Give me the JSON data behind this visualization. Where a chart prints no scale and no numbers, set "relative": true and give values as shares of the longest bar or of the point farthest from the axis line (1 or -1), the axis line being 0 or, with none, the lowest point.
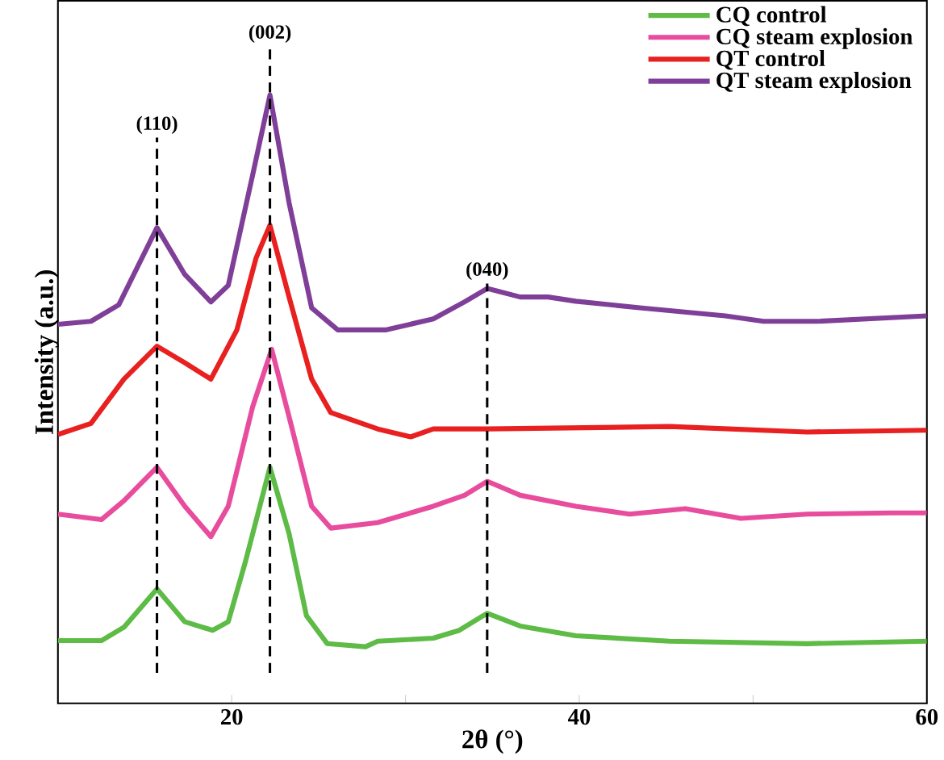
{
  "chart_data": {
    "type": "line",
    "xlabel": "2θ (°)",
    "ylabel": "Intensity (a.u.)",
    "relative": true,
    "xlim": [
      10,
      60
    ],
    "xticks": [
      20,
      {
        "value": 30,
        "label": null
      },
      40,
      {
        "value": 50,
        "label": null
      },
      60
    ],
    "legend": "top right",
    "line_style": "solid",
    "ref_lines": [
      {
        "axis": "x",
        "value": 15.7,
        "color": "#000000",
        "line_style": "dashed"
      },
      {
        "axis": "x",
        "value": 22.2,
        "color": "#000000",
        "line_style": "dashed"
      },
      {
        "axis": "x",
        "value": 34.7,
        "color": "#000000",
        "line_style": "dashed"
      }
    ],
    "annotations": [
      {
        "text": "(110)",
        "x": 15.7,
        "y": 0.93
      },
      {
        "text": "(002)",
        "x": 22.2,
        "y": 1.08
      },
      {
        "text": "(040)",
        "x": 34.7,
        "y": 0.69
      }
    ],
    "series": [
      {
        "name": "CQ control",
        "color": "#5dbb46",
        "x": [
          10,
          12.5,
          13.8,
          15.7,
          17.3,
          18.9,
          19.8,
          20.8,
          22.2,
          23.3,
          24.3,
          25.5,
          27.7,
          28.4,
          31.6,
          33.1,
          34.7,
          36.6,
          39.8,
          45.2,
          53.1,
          60
        ],
        "values": [
          0.103,
          0.103,
          0.125,
          0.188,
          0.134,
          0.12,
          0.134,
          0.234,
          0.388,
          0.279,
          0.144,
          0.098,
          0.093,
          0.102,
          0.107,
          0.12,
          0.148,
          0.127,
          0.111,
          0.102,
          0.098,
          0.102
        ]
      },
      {
        "name": "CQ steam explosion",
        "color": "#e84d9d",
        "x": [
          10,
          12.5,
          13.8,
          15.7,
          17.3,
          18.8,
          19.8,
          21.2,
          22.3,
          23.4,
          24.6,
          25.7,
          28.4,
          31.6,
          33.4,
          34.7,
          36.6,
          39.8,
          42.9,
          46.1,
          49.3,
          53.1,
          57.9,
          60
        ],
        "values": [
          0.311,
          0.302,
          0.333,
          0.388,
          0.324,
          0.274,
          0.324,
          0.487,
          0.582,
          0.46,
          0.324,
          0.288,
          0.297,
          0.324,
          0.342,
          0.365,
          0.342,
          0.324,
          0.311,
          0.32,
          0.304,
          0.311,
          0.313,
          0.313
        ]
      },
      {
        "name": "QT control",
        "color": "#e8201f",
        "x": [
          10,
          11.9,
          13.8,
          15.7,
          17.3,
          18.8,
          20.3,
          21.4,
          22.2,
          23.3,
          24.6,
          25.7,
          28.4,
          30.3,
          31.6,
          34.7,
          45.2,
          53.1,
          60
        ],
        "values": [
          0.442,
          0.46,
          0.533,
          0.587,
          0.56,
          0.533,
          0.614,
          0.732,
          0.786,
          0.668,
          0.533,
          0.478,
          0.451,
          0.438,
          0.451,
          0.451,
          0.455,
          0.446,
          0.449
        ]
      },
      {
        "name": "QT steam explosion",
        "color": "#7f3f98",
        "x": [
          10,
          11.9,
          13.5,
          15.7,
          17.3,
          18.8,
          19.8,
          21.2,
          22.2,
          23.3,
          24.6,
          26.1,
          28.9,
          31.6,
          33.4,
          34.7,
          36.6,
          38.2,
          39.8,
          43.6,
          48.4,
          50.6,
          53.7,
          60
        ],
        "values": [
          0.623,
          0.628,
          0.655,
          0.782,
          0.705,
          0.66,
          0.687,
          0.868,
          1,
          0.823,
          0.65,
          0.614,
          0.614,
          0.632,
          0.66,
          0.682,
          0.668,
          0.668,
          0.661,
          0.65,
          0.637,
          0.628,
          0.628,
          0.637
        ]
      }
    ]
  }
}
